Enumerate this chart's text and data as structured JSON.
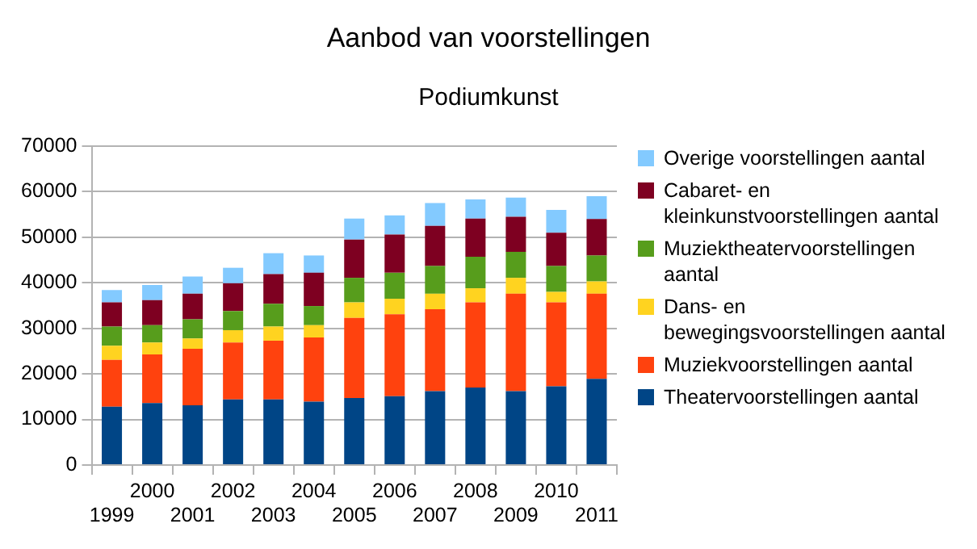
{
  "chart_data": {
    "type": "bar",
    "title": "Aanbod van voorstellingen",
    "subtitle": "Podiumkunst",
    "stacked": true,
    "grid": "y",
    "legend": "right",
    "categories": [
      "1999",
      "2000",
      "2001",
      "2002",
      "2003",
      "2004",
      "2005",
      "2006",
      "2007",
      "2008",
      "2009",
      "2010",
      "2011"
    ],
    "ylim": [
      0,
      70000
    ],
    "yticks": [
      0,
      10000,
      20000,
      30000,
      40000,
      50000,
      60000,
      70000
    ],
    "series": [
      {
        "name": "Theatervoorstellingen aantal",
        "color": "#004586",
        "values": [
          12800,
          13600,
          13100,
          14400,
          14400,
          13900,
          14700,
          15100,
          16200,
          17000,
          16200,
          17300,
          18900
        ]
      },
      {
        "name": "Muziekvoorstellingen aantal",
        "color": "#ff420e",
        "values": [
          10300,
          10700,
          12400,
          12500,
          12900,
          14100,
          17600,
          18000,
          18000,
          18700,
          21400,
          18400,
          18700
        ]
      },
      {
        "name": "Dans- en bewegingsvoorstellingen aantal",
        "color": "#ffd320",
        "values": [
          3100,
          2600,
          2300,
          2700,
          3100,
          2700,
          3400,
          3400,
          3400,
          3100,
          3500,
          2300,
          2700
        ]
      },
      {
        "name": "Muziektheatervoorstellingen aantal",
        "color": "#579d1c",
        "values": [
          4200,
          3800,
          4200,
          4200,
          5000,
          4200,
          5400,
          5700,
          6100,
          6900,
          5700,
          5700,
          5700
        ]
      },
      {
        "name": "Cabaret- en kleinkunstvoorstellingen aantal",
        "color": "#7e0021",
        "values": [
          5300,
          5500,
          5600,
          6100,
          6500,
          7300,
          8400,
          8400,
          8800,
          8400,
          7700,
          7300,
          8000
        ]
      },
      {
        "name": "Overige voorstellingen aantal",
        "color": "#83caff",
        "values": [
          2700,
          3300,
          3800,
          3400,
          4600,
          3800,
          4600,
          4200,
          5000,
          4200,
          4200,
          5000,
          5000
        ]
      }
    ]
  }
}
